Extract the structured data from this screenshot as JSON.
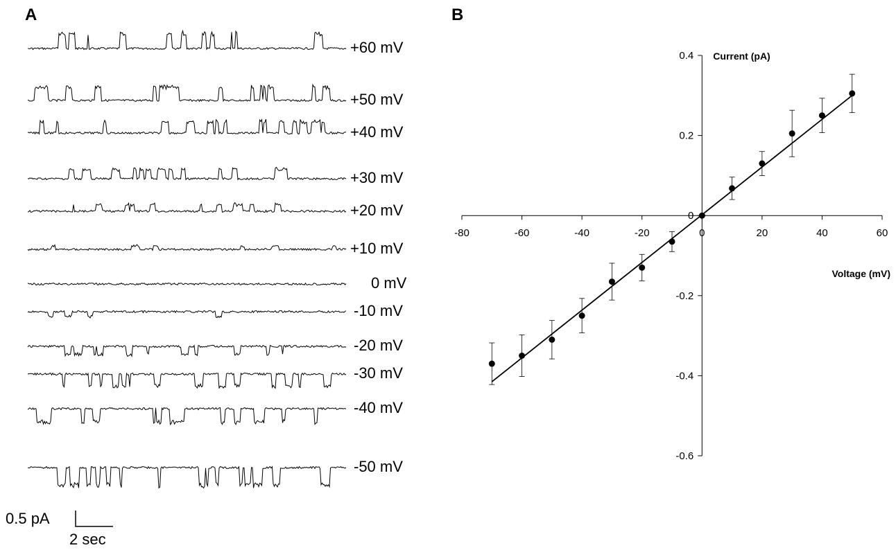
{
  "panels": {
    "a_label": "A",
    "b_label": "B"
  },
  "traces": [
    {
      "label": "+60 mV",
      "direction": "up",
      "events": 14,
      "amp": 22
    },
    {
      "label": "+50 mV",
      "direction": "up",
      "events": 20,
      "amp": 20
    },
    {
      "label": "+40 mV",
      "direction": "up",
      "events": 18,
      "amp": 17
    },
    {
      "label": "+30 mV",
      "direction": "up",
      "events": 16,
      "amp": 14
    },
    {
      "label": "+20 mV",
      "direction": "up",
      "events": 14,
      "amp": 10
    },
    {
      "label": "+10 mV",
      "direction": "up",
      "events": 6,
      "amp": 5
    },
    {
      "label": "0 mV",
      "direction": "none",
      "events": 0,
      "amp": 0
    },
    {
      "label": "-10 mV",
      "direction": "down",
      "events": 6,
      "amp": 7
    },
    {
      "label": "-20 mV",
      "direction": "down",
      "events": 12,
      "amp": 12
    },
    {
      "label": "-30 mV",
      "direction": "down",
      "events": 16,
      "amp": 18
    },
    {
      "label": "-40 mV",
      "direction": "down",
      "events": 18,
      "amp": 20
    },
    {
      "label": "-50 mV",
      "direction": "down",
      "events": 22,
      "amp": 26
    }
  ],
  "scale_bar": {
    "current_label": "0.5 pA",
    "time_label": "2 sec"
  },
  "chart_data": {
    "type": "scatter",
    "xlabel": "Voltage (mV)",
    "ylabel": "Current (pA)",
    "xlim": [
      -80,
      60
    ],
    "ylim": [
      -0.6,
      0.4
    ],
    "x_ticks": [
      -80,
      -60,
      -40,
      -20,
      0,
      20,
      40,
      60
    ],
    "y_ticks": [
      0.4,
      0.2,
      0,
      -0.2,
      -0.4,
      -0.6
    ],
    "x_tick_labels": [
      "-80",
      "-60",
      "-40",
      "-20",
      "0",
      "20",
      "40",
      "60"
    ],
    "y_tick_labels": [
      "0.4",
      "0.2",
      "0",
      "-0.2",
      "-0.4",
      "-0.6"
    ],
    "series": [
      {
        "x": [
          -70,
          -60,
          -50,
          -40,
          -30,
          -20,
          -10,
          0,
          10,
          20,
          30,
          40,
          50
        ],
        "y": [
          -0.37,
          -0.35,
          -0.31,
          -0.25,
          -0.165,
          -0.13,
          -0.065,
          0.0,
          0.068,
          0.13,
          0.205,
          0.25,
          0.305
        ],
        "error": [
          0.052,
          0.052,
          0.048,
          0.043,
          0.046,
          0.033,
          0.025,
          0.0,
          0.028,
          0.03,
          0.058,
          0.043,
          0.048
        ]
      }
    ],
    "fit_line": {
      "x": [
        -70,
        50
      ],
      "y": [
        -0.415,
        0.3
      ]
    },
    "grid": false
  }
}
